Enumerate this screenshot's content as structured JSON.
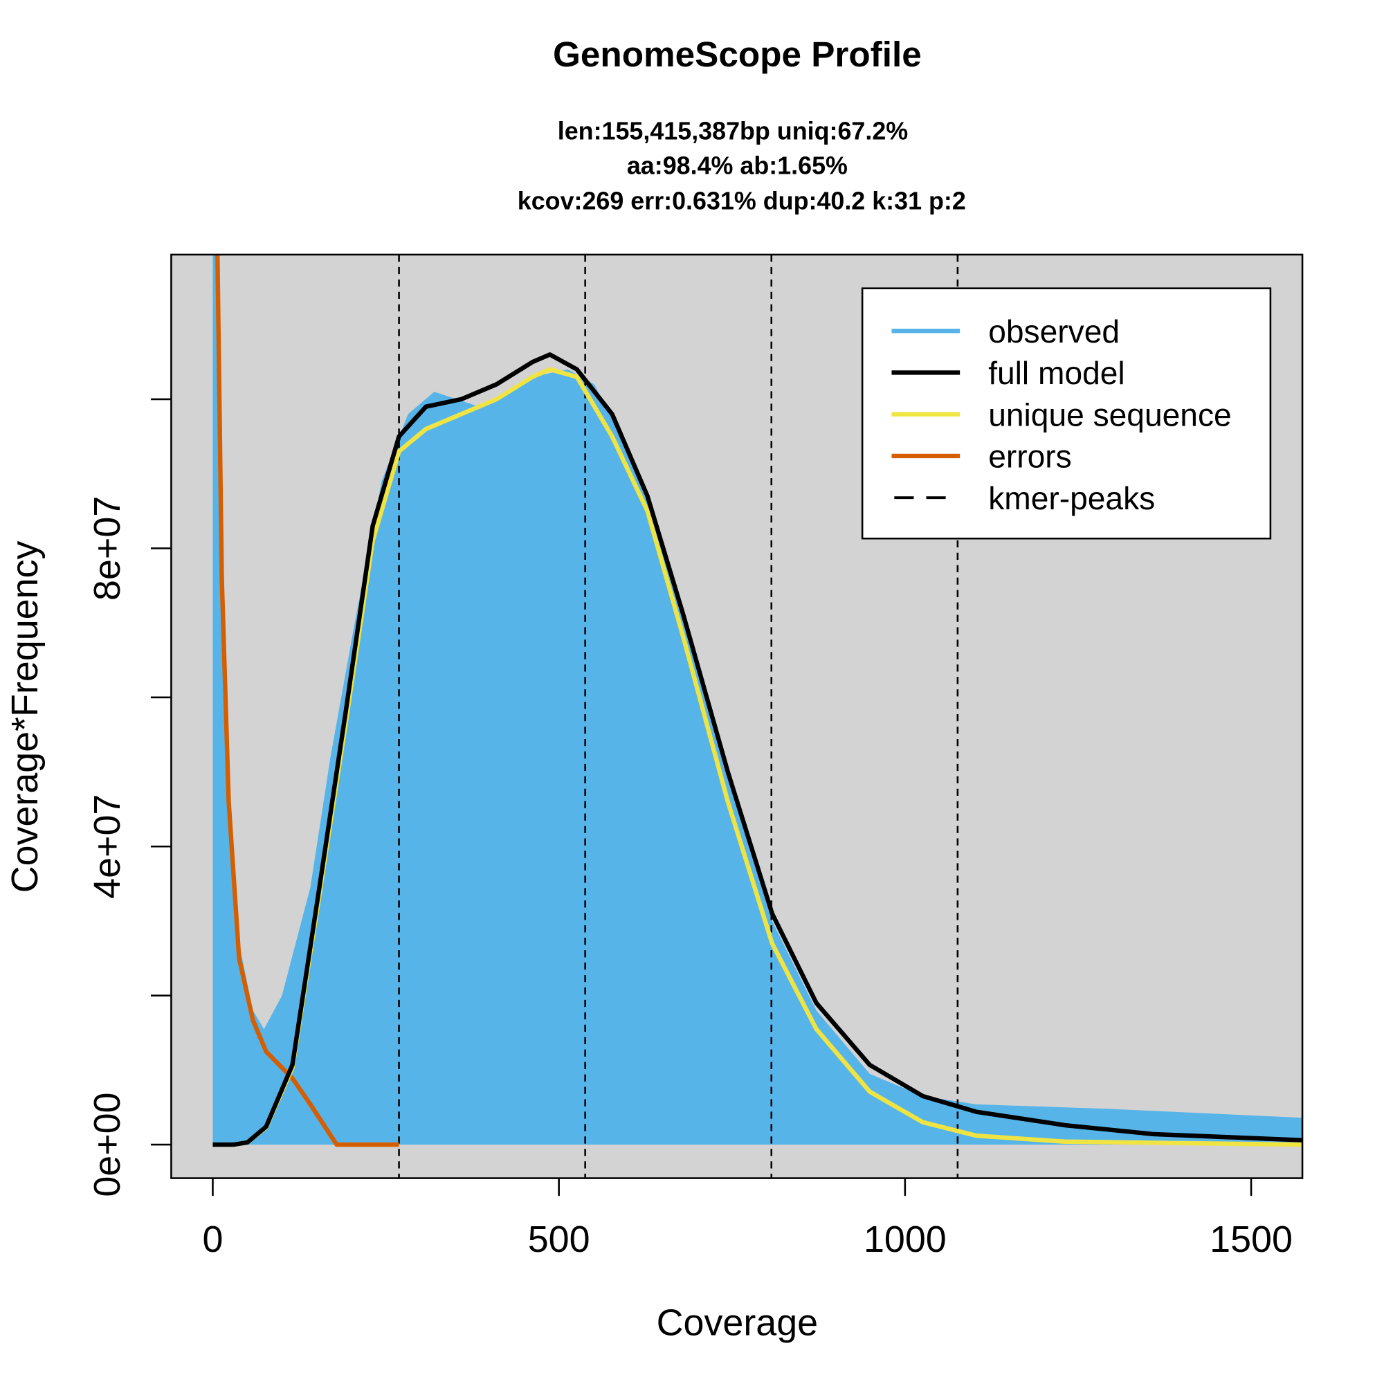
{
  "chart_data": {
    "type": "area",
    "title": "GenomeScope Profile",
    "subtitle_lines": [
      "len:155,415,387bp uniq:67.2%",
      "aa:98.4% ab:1.65%",
      "kcov:269 err:0.631%  dup:40.2  k:31 p:2"
    ],
    "xlabel": "Coverage",
    "ylabel": "Coverage*Frequency",
    "xlim": [
      -60,
      1574
    ],
    "ylim": [
      -4500000,
      119400000
    ],
    "x_ticks": [
      0,
      500,
      1000,
      1500
    ],
    "x_tick_labels": [
      "0",
      "500",
      "1000",
      "1500"
    ],
    "y_ticks": [
      0,
      20000000,
      40000000,
      60000000,
      80000000,
      100000000
    ],
    "y_tick_labels": [
      "0e+00",
      "",
      "4e+07",
      "",
      "8e+07",
      ""
    ],
    "kmer_peaks": [
      269,
      538,
      807,
      1076
    ],
    "legend": {
      "placement": "top-right",
      "entries": [
        {
          "label": "observed",
          "color": "#56B4E9",
          "style": "solid"
        },
        {
          "label": "full model",
          "color": "#000000",
          "style": "solid"
        },
        {
          "label": "unique sequence",
          "color": "#F0E442",
          "style": "solid"
        },
        {
          "label": "errors",
          "color": "#D55E00",
          "style": "solid"
        },
        {
          "label": "kmer-peaks",
          "color": "#000000",
          "style": "dashed"
        }
      ]
    },
    "background_color": "#D3D3D3",
    "series": [
      {
        "name": "observed",
        "color": "#56B4E9",
        "x": [
          0,
          6,
          13,
          23,
          38,
          58,
          74,
          100,
          141,
          170,
          205,
          244,
          282,
          320,
          385,
          462,
          513,
          551,
          590,
          641,
          692,
          744,
          808,
          872,
          949,
          1026,
          1103,
          1295,
          1574
        ],
        "y": [
          125000000,
          125000000,
          78000000,
          47000000,
          27000000,
          18000000,
          15500000,
          20000000,
          34500000,
          52000000,
          70000000,
          89000000,
          98000000,
          101000000,
          99000000,
          103000000,
          104000000,
          102000000,
          95000000,
          83000000,
          67000000,
          49000000,
          30000000,
          18000000,
          9500000,
          6500000,
          5400000,
          4800000,
          3600000
        ]
      },
      {
        "name": "full model",
        "color": "#000000",
        "x": [
          0,
          30,
          50,
          77,
          115,
          154,
          192,
          231,
          269,
          308,
          359,
          410,
          462,
          487,
          526,
          577,
          628,
          680,
          744,
          808,
          872,
          949,
          1026,
          1103,
          1231,
          1359,
          1574
        ],
        "y": [
          0,
          0,
          300000,
          2400000,
          10700000,
          34500000,
          58000000,
          83000000,
          95000000,
          99000000,
          100000000,
          102000000,
          105000000,
          106000000,
          104000000,
          98000000,
          87000000,
          71000000,
          50000000,
          31000000,
          19000000,
          10700000,
          6500000,
          4400000,
          2600000,
          1400000,
          600000
        ]
      },
      {
        "name": "unique sequence",
        "color": "#F0E442",
        "x": [
          0,
          30,
          50,
          77,
          115,
          154,
          192,
          231,
          269,
          308,
          359,
          410,
          462,
          487,
          526,
          577,
          628,
          680,
          744,
          808,
          872,
          949,
          1026,
          1103,
          1231,
          1574
        ],
        "y": [
          0,
          0,
          300000,
          2300000,
          10300000,
          33500000,
          56500000,
          81000000,
          93000000,
          96000000,
          98000000,
          100000000,
          103000000,
          104000000,
          103000000,
          95000000,
          85000000,
          68000000,
          46000000,
          27000000,
          15500000,
          7100000,
          3000000,
          1200000,
          400000,
          0
        ]
      },
      {
        "name": "errors",
        "color": "#D55E00",
        "x": [
          6,
          13,
          23,
          38,
          58,
          77,
          115,
          141,
          179,
          200,
          269
        ],
        "y": [
          125000000,
          76000000,
          46000000,
          25000000,
          16700000,
          12500000,
          8900000,
          5400000,
          0,
          0,
          0
        ]
      }
    ]
  }
}
